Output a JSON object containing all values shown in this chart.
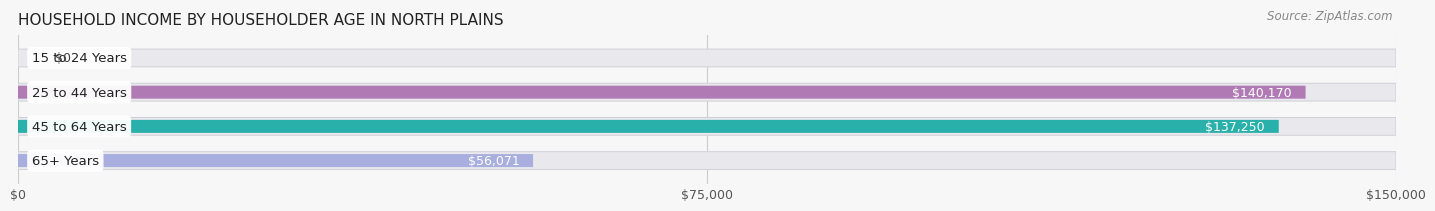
{
  "title": "HOUSEHOLD INCOME BY HOUSEHOLDER AGE IN NORTH PLAINS",
  "source": "Source: ZipAtlas.com",
  "categories": [
    "15 to 24 Years",
    "25 to 44 Years",
    "45 to 64 Years",
    "65+ Years"
  ],
  "values": [
    0,
    140170,
    137250,
    56071
  ],
  "bar_colors": [
    "#aabbee",
    "#b07ab5",
    "#2ab0aa",
    "#a8aedd"
  ],
  "bar_track_color": "#e8e8ed",
  "bar_track_border": "#d0d0d8",
  "background_color": "#f7f7f7",
  "xlim": [
    0,
    150000
  ],
  "xticks": [
    0,
    75000,
    150000
  ],
  "xtick_labels": [
    "$0",
    "$75,000",
    "$150,000"
  ],
  "value_labels": [
    "$0",
    "$140,170",
    "$137,250",
    "$56,071"
  ],
  "title_fontsize": 11,
  "source_fontsize": 8.5,
  "label_fontsize": 9.5,
  "tick_fontsize": 9
}
